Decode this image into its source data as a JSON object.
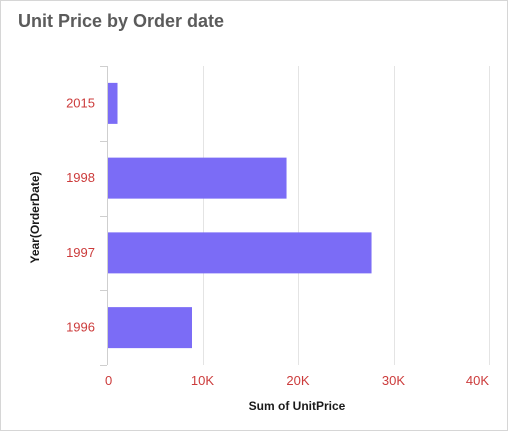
{
  "chart_data": {
    "type": "bar",
    "orientation": "horizontal",
    "title": "Unit Price by Order date",
    "xlabel": "Sum of UnitPrice",
    "ylabel": "Year(OrderDate)",
    "categories": [
      "2015",
      "1998",
      "1997",
      "1996"
    ],
    "values": [
      1100,
      18800,
      27700,
      8900
    ],
    "xlim": [
      0,
      40000
    ],
    "xticks": [
      0,
      10000,
      20000,
      30000,
      40000
    ],
    "xtick_labels": [
      "0",
      "10K",
      "20K",
      "30K",
      "40K"
    ],
    "grid": true,
    "colors": {
      "bar": "#7b6cf6",
      "tick_label": "#cc3b3b",
      "title": "#5b5b5b"
    }
  }
}
